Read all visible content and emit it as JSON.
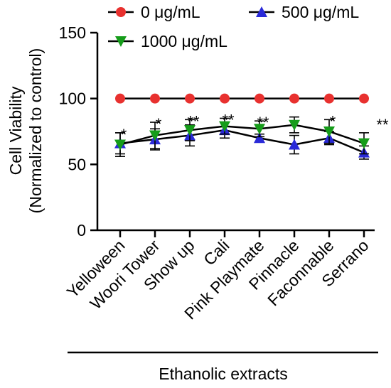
{
  "chart_data": {
    "type": "line",
    "title": "",
    "xlabel": "Ethanolic extracts",
    "ylabel": "Cell Viability",
    "ylabel_sub": "(Normalized to control)",
    "ylim": [
      0,
      150
    ],
    "yticks": [
      0,
      50,
      100,
      150
    ],
    "grid": false,
    "legend_position": "top",
    "categories": [
      "Yelloween",
      "Woori Tower",
      "Show up",
      "Cali",
      "Pink Playmate",
      "Pinnacle",
      "Faconnable",
      "Serrano"
    ],
    "series": [
      {
        "name": "0 μg/mL",
        "marker": "circle",
        "color": "#e8312f",
        "values": [
          100,
          100,
          100,
          100,
          100,
          100,
          100,
          100
        ],
        "errors": [
          0,
          0,
          0,
          0,
          0,
          0,
          0,
          0
        ]
      },
      {
        "name": "500 μg/mL",
        "marker": "triangle-up",
        "color": "#2a2ad8",
        "values": [
          66,
          69,
          72,
          76,
          70,
          65,
          70,
          59
        ],
        "errors": [
          8,
          8,
          8,
          6,
          3,
          7,
          5,
          5
        ]
      },
      {
        "name": "1000 μg/mL",
        "marker": "triangle-down",
        "color": "#169c1a",
        "values": [
          65,
          72,
          76,
          79,
          77,
          80,
          75,
          66
        ],
        "errors": [
          9,
          10,
          8,
          6,
          6,
          6,
          9,
          8
        ]
      }
    ],
    "annotations": [
      {
        "category": "Yelloween",
        "text": "*"
      },
      {
        "category": "Woori Tower",
        "text": "*"
      },
      {
        "category": "Show up",
        "text": "**"
      },
      {
        "category": "Cali",
        "text": "**"
      },
      {
        "category": "Pink Playmate",
        "text": "**"
      },
      {
        "category": "Faconnable",
        "text": "*"
      },
      {
        "category": "Serrano",
        "text": "**"
      }
    ]
  }
}
